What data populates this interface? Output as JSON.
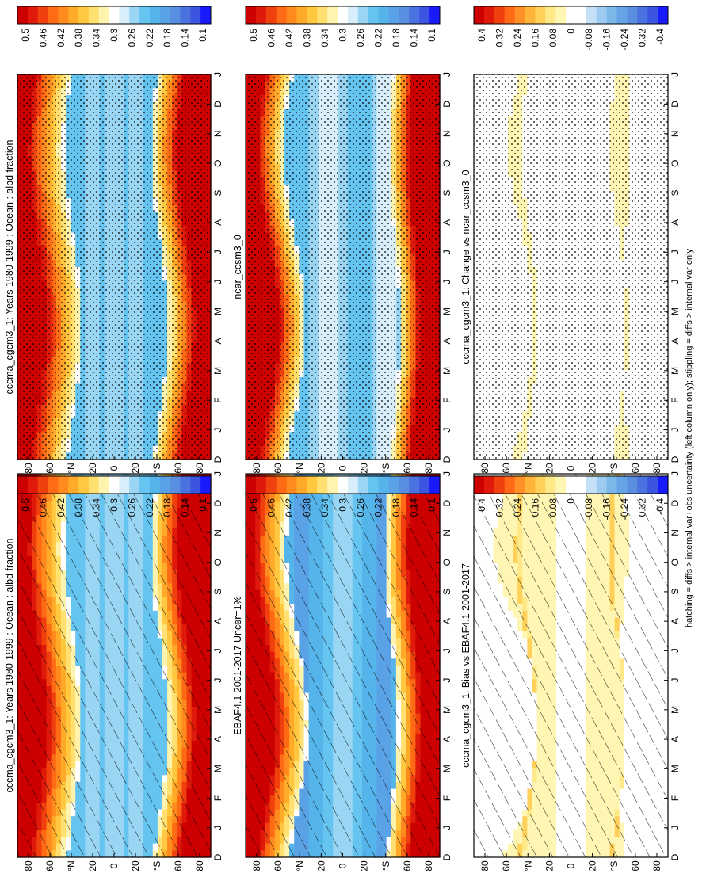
{
  "footer_note": "hatching = diffs > internal var+obs uncertainty (left column only); stippling = diffs > internal var only",
  "colors": {
    "abs_scale": [
      "#1a1aff",
      "#3b55e0",
      "#4a72e0",
      "#5a8ee0",
      "#5aa2e6",
      "#55b4ea",
      "#66c4f0",
      "#9ad6f4",
      "#d8eefa",
      "#ffffff",
      "#fff3b0",
      "#ffe070",
      "#ffc840",
      "#ffaa28",
      "#ff8a1e",
      "#ff6a14",
      "#f0400e",
      "#e01a0a",
      "#cc0000"
    ],
    "diff_scale": [
      "#1a1aff",
      "#3b55e0",
      "#4a72e0",
      "#5a8ee0",
      "#66a4e6",
      "#7ab8ea",
      "#9ccaf0",
      "#c4e0f6",
      "#ffffff",
      "#ffffff",
      "#fff6b4",
      "#ffe888",
      "#ffd05a",
      "#ffb43a",
      "#ff9028",
      "#ff6a18",
      "#f0400e",
      "#e01a0a",
      "#cc0000"
    ]
  },
  "chart_data": [
    {
      "id": "model_abs",
      "type": "heatmap",
      "title": "cccma_cgcm3_1: Years 1980-1999 : Ocean : albd fraction",
      "x_ticks": [
        "D",
        "J",
        "F",
        "M",
        "A",
        "M",
        "J",
        "J",
        "A",
        "S",
        "O",
        "N",
        "D",
        "J"
      ],
      "y_ticks": [
        "80",
        "60",
        "°N",
        "20",
        "0",
        "20",
        "°S",
        "60",
        "80"
      ],
      "colorbar_labels": [
        "0.5",
        "0.46",
        "0.42",
        "0.38",
        "0.34",
        "0.3",
        "0.26",
        "0.22",
        "0.18",
        "0.14",
        "0.1"
      ],
      "zlim": [
        0.08,
        0.52
      ],
      "overlay": "hatching",
      "field": "albedo_model"
    },
    {
      "id": "obs_abs",
      "type": "heatmap",
      "title": "EBAF4.1 2001-2017 Uncer=1%",
      "x_ticks": [
        "D",
        "J",
        "F",
        "M",
        "A",
        "M",
        "J",
        "J",
        "A",
        "S",
        "O",
        "N",
        "D",
        "J"
      ],
      "y_ticks": [
        "80",
        "60",
        "°N",
        "20",
        "0",
        "20",
        "°S",
        "60",
        "80"
      ],
      "colorbar_labels": [
        "0.5",
        "0.46",
        "0.42",
        "0.38",
        "0.34",
        "0.3",
        "0.26",
        "0.22",
        "0.18",
        "0.14",
        "0.1"
      ],
      "zlim": [
        0.08,
        0.52
      ],
      "overlay": "hatching",
      "field": "albedo_obs"
    },
    {
      "id": "bias",
      "type": "heatmap",
      "title": "cccma_cgcm3_1: Bias vs EBAF4.1 2001-2017",
      "x_ticks": [
        "D",
        "J",
        "F",
        "M",
        "A",
        "M",
        "J",
        "J",
        "A",
        "S",
        "O",
        "N",
        "D",
        "J"
      ],
      "y_ticks": [
        "80",
        "60",
        "°N",
        "20",
        "0",
        "20",
        "°S",
        "60",
        "80"
      ],
      "colorbar_labels": [
        "0.4",
        "0.32",
        "0.24",
        "0.16",
        "0.08",
        "0",
        "-0.08",
        "-0.16",
        "-0.24",
        "-0.32",
        "-0.4"
      ],
      "zlim": [
        -0.44,
        0.44
      ],
      "overlay": "hatching",
      "field": "bias"
    },
    {
      "id": "model_abs_2",
      "type": "heatmap",
      "title": "cccma_cgcm3_1: Years 1980-1999 : Ocean : albd fraction",
      "x_ticks": [
        "D",
        "J",
        "F",
        "M",
        "A",
        "M",
        "J",
        "J",
        "A",
        "S",
        "O",
        "N",
        "D",
        "J"
      ],
      "y_ticks": [
        "80",
        "60",
        "°N",
        "20",
        "0",
        "20",
        "°S",
        "60",
        "80"
      ],
      "colorbar_labels": [
        "0.5",
        "0.46",
        "0.42",
        "0.38",
        "0.34",
        "0.3",
        "0.26",
        "0.22",
        "0.18",
        "0.14",
        "0.1"
      ],
      "zlim": [
        0.08,
        0.52
      ],
      "overlay": "stippling",
      "field": "albedo_model"
    },
    {
      "id": "ref_model_abs",
      "type": "heatmap",
      "title": "ncar_ccsm3_0",
      "x_ticks": [
        "D",
        "J",
        "F",
        "M",
        "A",
        "M",
        "J",
        "J",
        "A",
        "S",
        "O",
        "N",
        "D",
        "J"
      ],
      "y_ticks": [
        "80",
        "60",
        "°N",
        "20",
        "0",
        "20",
        "°S",
        "60",
        "80"
      ],
      "colorbar_labels": [
        "0.5",
        "0.46",
        "0.42",
        "0.38",
        "0.34",
        "0.3",
        "0.26",
        "0.22",
        "0.18",
        "0.14",
        "0.1"
      ],
      "zlim": [
        0.08,
        0.52
      ],
      "overlay": "stippling",
      "field": "albedo_ref"
    },
    {
      "id": "change",
      "type": "heatmap",
      "title": "cccma_cgcm3_1: Change vs ncar_ccsm3_0",
      "x_ticks": [
        "D",
        "J",
        "F",
        "M",
        "A",
        "M",
        "J",
        "J",
        "A",
        "S",
        "O",
        "N",
        "D",
        "J"
      ],
      "y_ticks": [
        "80",
        "60",
        "°N",
        "20",
        "0",
        "20",
        "°S",
        "60",
        "80"
      ],
      "colorbar_labels": [
        "0.4",
        "0.32",
        "0.24",
        "0.16",
        "0.08",
        "0",
        "-0.08",
        "-0.16",
        "-0.24",
        "-0.32",
        "-0.4"
      ],
      "zlim": [
        -0.44,
        0.44
      ],
      "overlay": "stippling",
      "field": "change"
    }
  ]
}
